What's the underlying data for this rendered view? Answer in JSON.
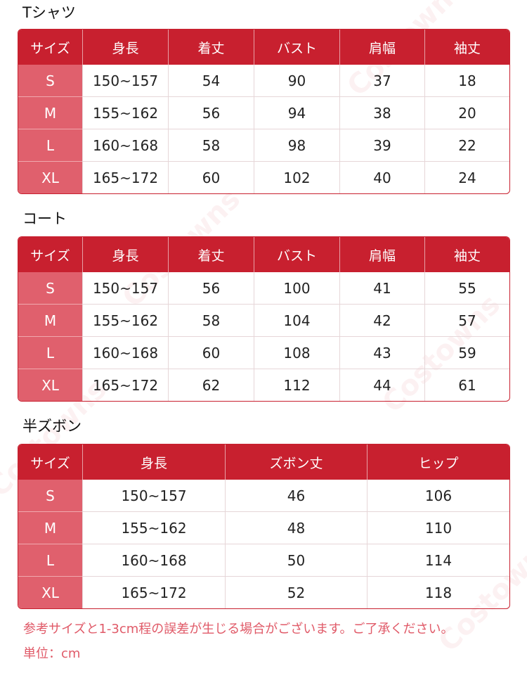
{
  "watermark": "Costowns",
  "colors": {
    "header": "#c8202f",
    "size_column": "#e0606d",
    "note": "#e05a68"
  },
  "tables": [
    {
      "title": "Tシャツ",
      "headers": [
        "サイズ",
        "身長",
        "着丈",
        "バスト",
        "肩幅",
        "袖丈"
      ],
      "rows": [
        [
          "S",
          "150~157",
          "54",
          "90",
          "37",
          "18"
        ],
        [
          "M",
          "155~162",
          "56",
          "94",
          "38",
          "20"
        ],
        [
          "L",
          "160~168",
          "58",
          "98",
          "39",
          "22"
        ],
        [
          "XL",
          "165~172",
          "60",
          "102",
          "40",
          "24"
        ]
      ]
    },
    {
      "title": "コート",
      "headers": [
        "サイズ",
        "身長",
        "着丈",
        "バスト",
        "肩幅",
        "袖丈"
      ],
      "rows": [
        [
          "S",
          "150~157",
          "56",
          "100",
          "41",
          "55"
        ],
        [
          "M",
          "155~162",
          "58",
          "104",
          "42",
          "57"
        ],
        [
          "L",
          "160~168",
          "60",
          "108",
          "43",
          "59"
        ],
        [
          "XL",
          "165~172",
          "62",
          "112",
          "44",
          "61"
        ]
      ]
    },
    {
      "title": "半ズボン",
      "headers": [
        "サイズ",
        "身長",
        "ズボン丈",
        "ヒップ"
      ],
      "rows": [
        [
          "S",
          "150~157",
          "46",
          "106"
        ],
        [
          "M",
          "155~162",
          "48",
          "110"
        ],
        [
          "L",
          "160~168",
          "50",
          "114"
        ],
        [
          "XL",
          "165~172",
          "52",
          "118"
        ]
      ]
    }
  ],
  "notes": {
    "line1": "参考サイズと1-3cm程の誤差が生じる場合がございます。ご了承ください。",
    "line2": "単位：cm"
  }
}
